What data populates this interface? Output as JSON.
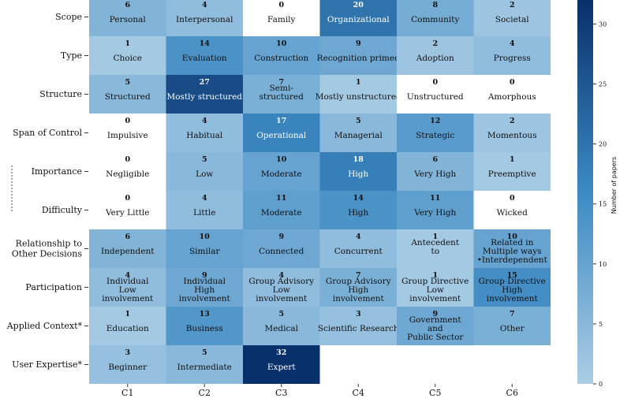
{
  "chart_data": {
    "type": "heatmap",
    "columns": [
      "C1",
      "C2",
      "C3",
      "C4",
      "C5",
      "C6"
    ],
    "rows": [
      {
        "name": "Scope",
        "cells": [
          {
            "count": 6,
            "label": "Personal"
          },
          {
            "count": 4,
            "label": "Interpersonal"
          },
          {
            "count": 0,
            "label": "Family"
          },
          {
            "count": 20,
            "label": "Organizational"
          },
          {
            "count": 8,
            "label": "Community"
          },
          {
            "count": 2,
            "label": "Societal"
          }
        ]
      },
      {
        "name": "Type",
        "cells": [
          {
            "count": 1,
            "label": "Choice"
          },
          {
            "count": 14,
            "label": "Evaluation"
          },
          {
            "count": 10,
            "label": "Construction"
          },
          {
            "count": 9,
            "label": "Recognition primed"
          },
          {
            "count": 2,
            "label": "Adoption"
          },
          {
            "count": 4,
            "label": "Progress"
          }
        ]
      },
      {
        "name": "Structure",
        "cells": [
          {
            "count": 5,
            "label": "Structured"
          },
          {
            "count": 27,
            "label": "Mostly structured"
          },
          {
            "count": 7,
            "label": "Semi-\nstructured"
          },
          {
            "count": 1,
            "label": "Mostly unstructured"
          },
          {
            "count": 0,
            "label": "Unstructured"
          },
          {
            "count": 0,
            "label": "Amorphous"
          }
        ]
      },
      {
        "name": "Span of Control",
        "cells": [
          {
            "count": 0,
            "label": "Impulsive"
          },
          {
            "count": 4,
            "label": "Habitual"
          },
          {
            "count": 17,
            "label": "Operational"
          },
          {
            "count": 5,
            "label": "Managerial"
          },
          {
            "count": 12,
            "label": "Strategic"
          },
          {
            "count": 2,
            "label": "Momentous"
          }
        ]
      },
      {
        "name": "Importance",
        "cells": [
          {
            "count": 0,
            "label": "Negligible"
          },
          {
            "count": 5,
            "label": "Low"
          },
          {
            "count": 10,
            "label": "Moderate"
          },
          {
            "count": 18,
            "label": "High"
          },
          {
            "count": 6,
            "label": "Very High"
          },
          {
            "count": 1,
            "label": "Preemptive"
          }
        ]
      },
      {
        "name": "Difficulty",
        "cells": [
          {
            "count": 0,
            "label": "Very Little"
          },
          {
            "count": 4,
            "label": "Little"
          },
          {
            "count": 11,
            "label": "Moderate"
          },
          {
            "count": 14,
            "label": "High"
          },
          {
            "count": 11,
            "label": "Very High"
          },
          {
            "count": 0,
            "label": "Wicked"
          }
        ]
      },
      {
        "name": "Relationship to\nOther Decisions",
        "cells": [
          {
            "count": 6,
            "label": "Independent"
          },
          {
            "count": 10,
            "label": "Similar"
          },
          {
            "count": 9,
            "label": "Connected"
          },
          {
            "count": 4,
            "label": "Concurrent"
          },
          {
            "count": 1,
            "label": "Antecedent\nto"
          },
          {
            "count": 10,
            "label": "Related in\nMultiple ways\n•Interdependent"
          }
        ]
      },
      {
        "name": "Participation",
        "cells": [
          {
            "count": 4,
            "label": "Individual\nLow\ninvolvement"
          },
          {
            "count": 9,
            "label": "Individual\nHigh\ninvolvement"
          },
          {
            "count": 4,
            "label": "Group Advisory\nLow\ninvolvement"
          },
          {
            "count": 7,
            "label": "Group Advisory\nHigh\ninvolvement"
          },
          {
            "count": 1,
            "label": "Group Directive\nLow\ninvolvement"
          },
          {
            "count": 15,
            "label": "Group Directive\nHigh\ninvolvement"
          }
        ]
      },
      {
        "name": "Applied Context*",
        "cells": [
          {
            "count": 1,
            "label": "Education"
          },
          {
            "count": 13,
            "label": "Business"
          },
          {
            "count": 5,
            "label": "Medical"
          },
          {
            "count": 3,
            "label": "Scientific Research"
          },
          {
            "count": 9,
            "label": "Government\nand\nPublic Sector"
          },
          {
            "count": 7,
            "label": "Other"
          }
        ]
      },
      {
        "name": "User Expertise*",
        "cells": [
          {
            "count": 3,
            "label": "Beginner"
          },
          {
            "count": 5,
            "label": "Intermediate"
          },
          {
            "count": 32,
            "label": "Expert"
          },
          null,
          null,
          null
        ]
      }
    ],
    "colorbar": {
      "label": "Number of papers",
      "ticks": [
        0,
        5,
        10,
        15,
        20,
        25,
        30
      ],
      "range": [
        0,
        32
      ]
    },
    "colors": {
      "low": "#abcde5",
      "mid": "#3d8ac3",
      "high": "#08306b",
      "zero": "#ffffff"
    }
  }
}
